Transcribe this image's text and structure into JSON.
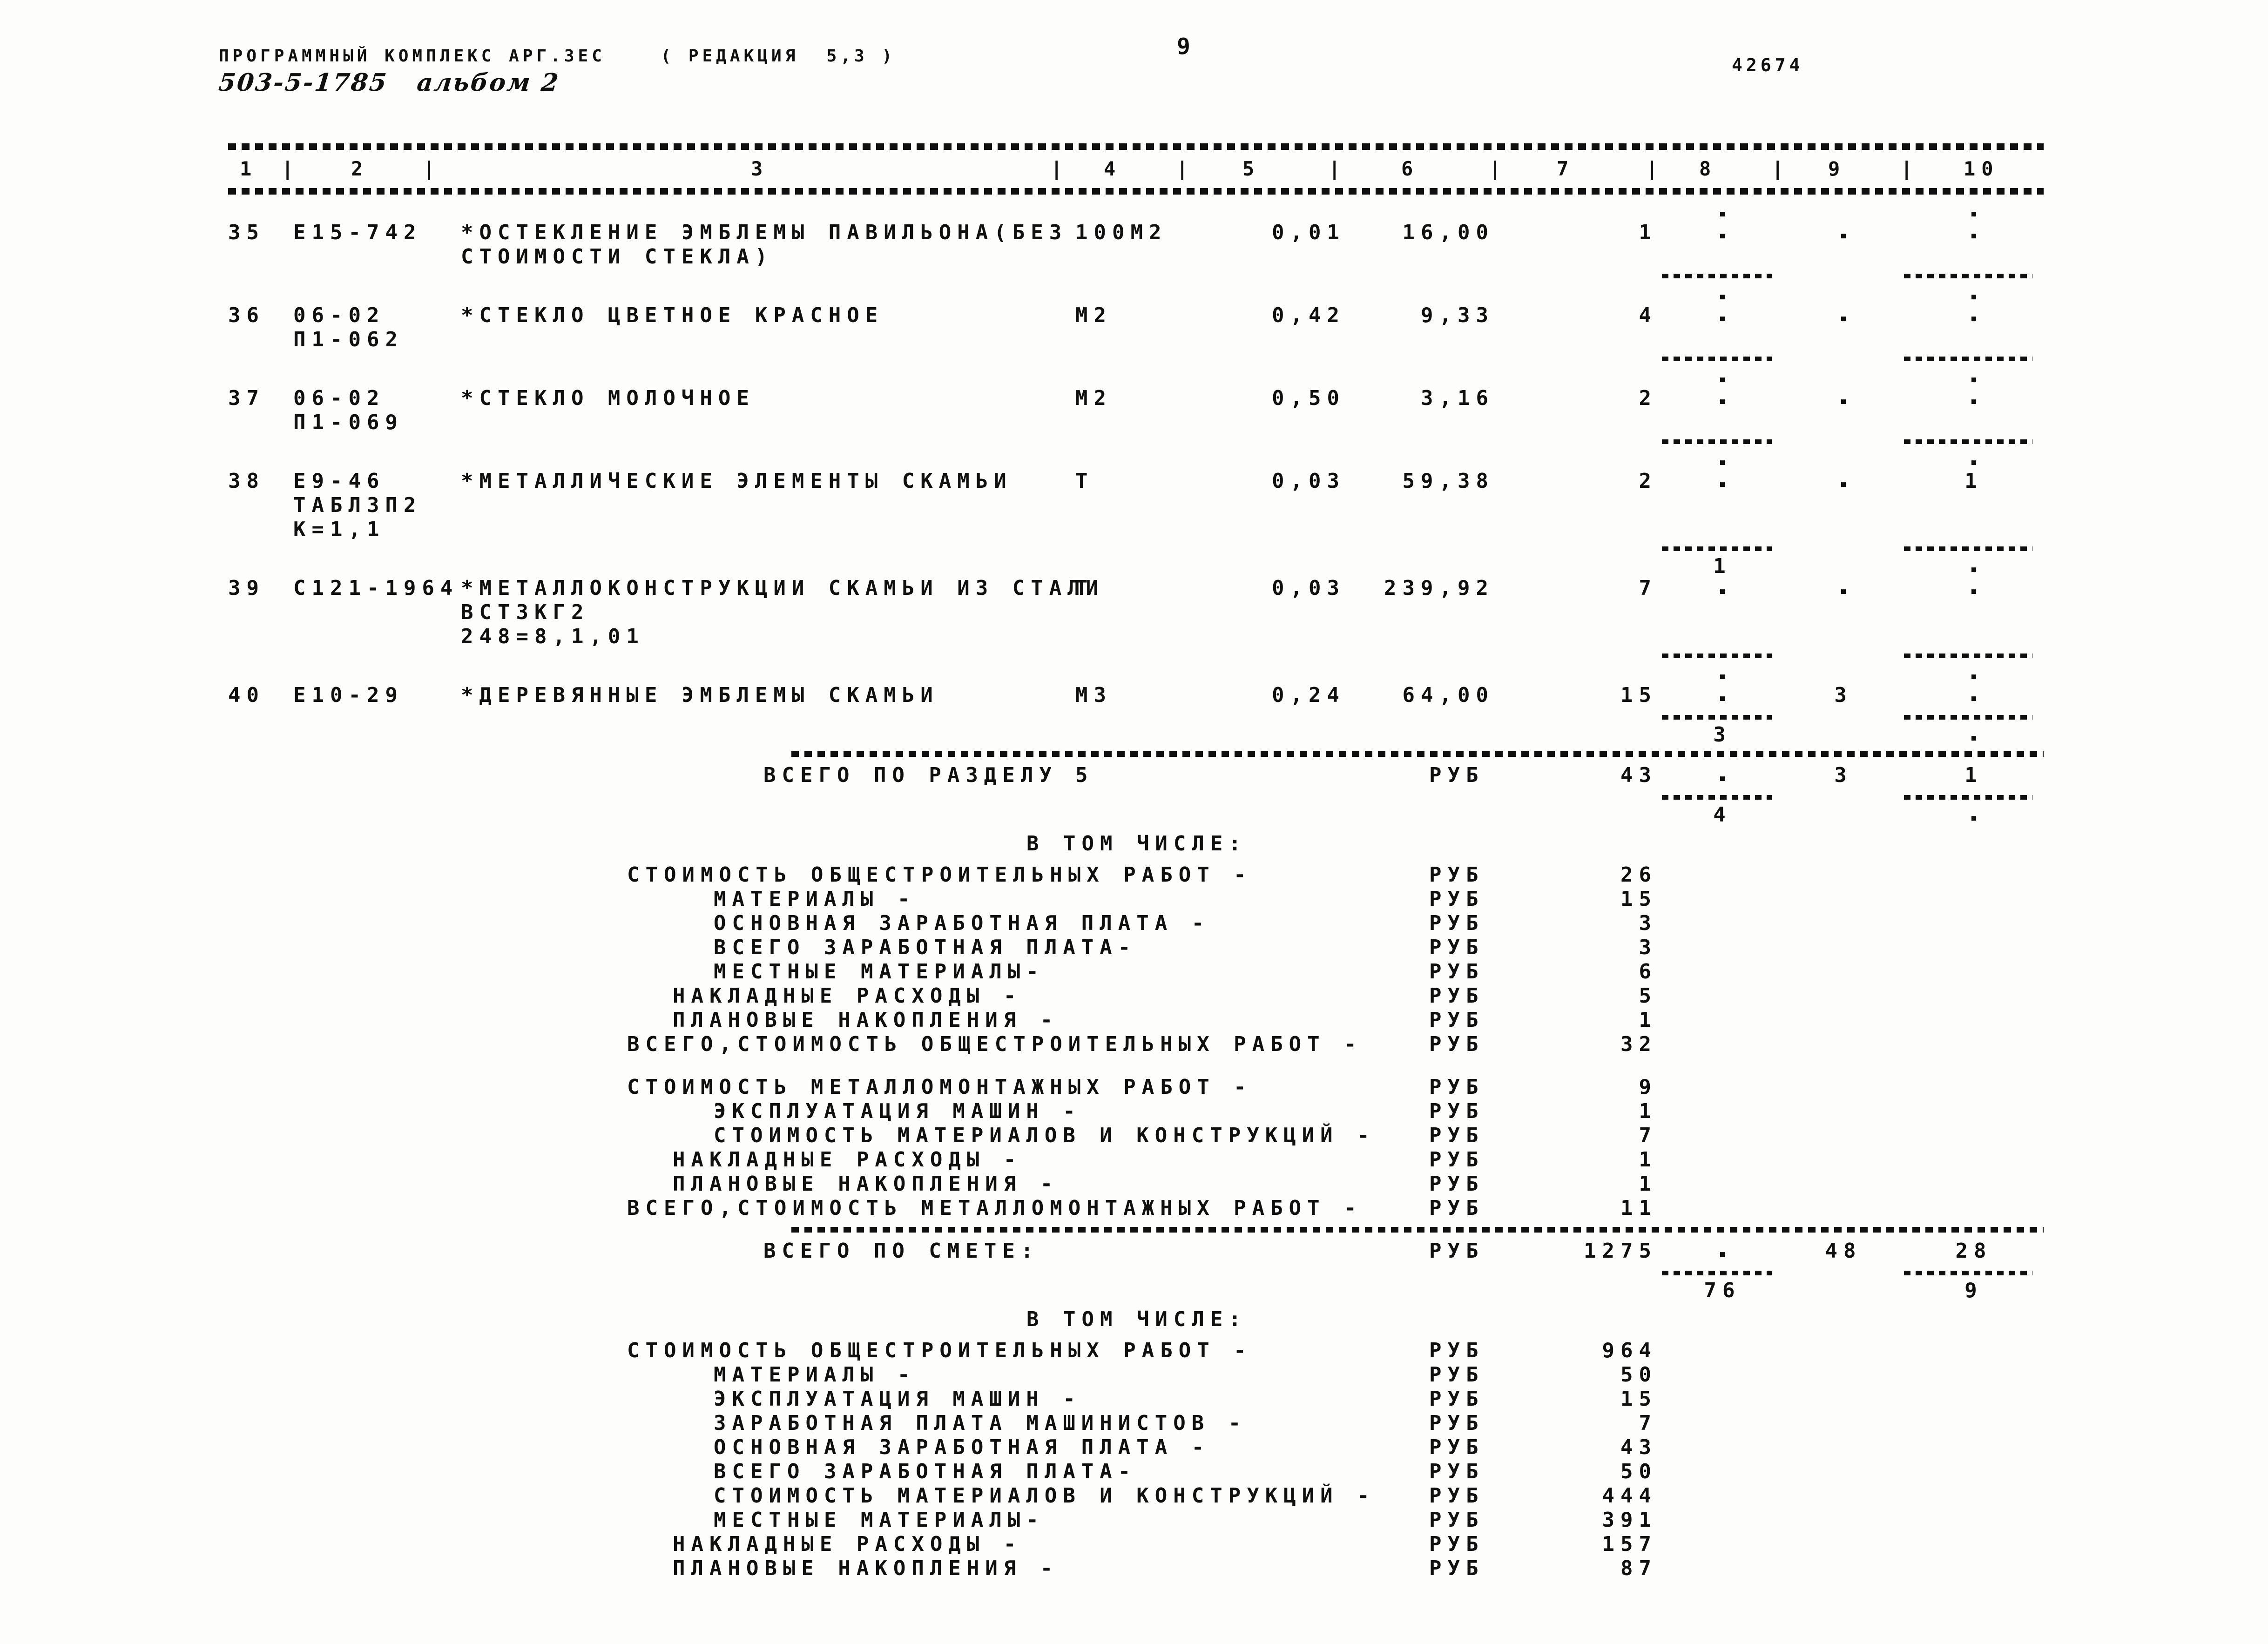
{
  "page": {
    "number": "9",
    "form_number": "42674"
  },
  "header": {
    "program_title": "ПРОГРАММНЫЙ КОМПЛЕКС АРГ.ЗЕС    ( РЕДАКЦИЯ  5,3 )",
    "handwritten_series": "503-5-1785   альбом 2"
  },
  "table": {
    "column_numbers": [
      "1",
      "2",
      "3",
      "4",
      "5",
      "6",
      "7",
      "8",
      "9",
      "10"
    ],
    "mark_glyph": "▪",
    "rows": [
      {
        "num": "35",
        "code": [
          "Е15-742"
        ],
        "desc": [
          "*ОСТЕКЛЕНИЕ ЭМБЛЕМЫ ПАВИЛЬОНА(БЕЗ",
          "СТОИМОСТИ СТЕКЛА)"
        ],
        "unit": "100М2",
        "col5": "0,01",
        "col6": "16,00",
        "col7": "1",
        "c8": "▪",
        "c9": "▪",
        "c10": "▪",
        "above_c8": "▪",
        "above_c10": "▪"
      },
      {
        "num": "36",
        "code": [
          "06-02",
          "П1-062"
        ],
        "desc": [
          "*СТЕКЛО ЦВЕТНОЕ КРАСНОЕ"
        ],
        "unit": "М2",
        "col5": "0,42",
        "col6": "9,33",
        "col7": "4",
        "c8": "▪",
        "c9": "▪",
        "c10": "▪",
        "above_c8": "▪",
        "above_c10": "▪"
      },
      {
        "num": "37",
        "code": [
          "06-02",
          "П1-069"
        ],
        "desc": [
          "*СТЕКЛО МОЛОЧНОЕ"
        ],
        "unit": "М2",
        "col5": "0,50",
        "col6": "3,16",
        "col7": "2",
        "c8": "▪",
        "c9": "▪",
        "c10": "▪",
        "above_c8": "▪",
        "above_c10": "▪"
      },
      {
        "num": "38",
        "code": [
          "Е9-46",
          "ТАБЛ3П2",
          "К=1,1"
        ],
        "desc": [
          "*МЕТАЛЛИЧЕСКИЕ ЭЛЕМЕНТЫ СКАМЬИ"
        ],
        "unit": "Т",
        "col5": "0,03",
        "col6": "59,38",
        "col7": "2",
        "c8": "▪",
        "c9": "▪",
        "c10": "1",
        "above_c8": "▪",
        "above_c10": "▪"
      },
      {
        "num": "39",
        "code": [
          "С121-1964"
        ],
        "desc": [
          "*МЕТАЛЛОКОНСТРУКЦИИ СКАМЬИ ИЗ СТАЛИ",
          "ВСТ3КГ2",
          "248=8,1,01"
        ],
        "unit": "Т",
        "col5": "0,03",
        "col6": "239,92",
        "col7": "7",
        "c8": "▪",
        "c9": "▪",
        "c10": "▪",
        "above_c8": "1",
        "above_c10": "▪"
      },
      {
        "num": "40",
        "code": [
          "Е10-29"
        ],
        "desc": [
          "*ДЕРЕВЯННЫЕ ЭМБЛЕМЫ СКАМЬИ"
        ],
        "unit": "М3",
        "col5": "0,24",
        "col6": "64,00",
        "col7": "15",
        "c8": "▪",
        "c9": "3",
        "c10": "▪",
        "above_c8": "▪",
        "above_c10": "▪",
        "extra_c8": "3",
        "extra_c10": "▪"
      }
    ],
    "total_razdel": {
      "label": "ВСЕГО ПО РАЗДЕЛУ",
      "section_no": "5",
      "currency": "РУБ",
      "col7": "43",
      "c8": "▪",
      "c9": "3",
      "c10": "1",
      "extra_c8": "4",
      "extra_c10": "▪"
    },
    "total_smeta": {
      "label": "ВСЕГО ПО СМЕТЕ:",
      "currency": "РУБ",
      "col7": "1275",
      "c8": "▪",
      "c9": "48",
      "c10": "28",
      "extra_c8": "76",
      "extra_c10": "9"
    }
  },
  "breakdown": {
    "title": "В ТОМ ЧИСЛЕ:",
    "razdel_items": [
      {
        "label": "СТОИМОСТЬ ОБЩЕСТРОИТЕЛЬНЫХ РАБОТ -",
        "indent": 0,
        "currency": "РУБ",
        "value": "26"
      },
      {
        "label": "МАТЕРИАЛЫ -",
        "indent": 2,
        "currency": "РУБ",
        "value": "15"
      },
      {
        "label": "ОСНОВНАЯ ЗАРАБОТНАЯ ПЛАТА -",
        "indent": 2,
        "currency": "РУБ",
        "value": "3"
      },
      {
        "label": "ВСЕГО ЗАРАБОТНАЯ ПЛАТА-",
        "indent": 2,
        "currency": "РУБ",
        "value": "3"
      },
      {
        "label": "МЕСТНЫЕ МАТЕРИАЛЫ-",
        "indent": 2,
        "currency": "РУБ",
        "value": "6"
      },
      {
        "label": "НАКЛАДНЫЕ РАСХОДЫ -",
        "indent": 1,
        "currency": "РУБ",
        "value": "5"
      },
      {
        "label": "ПЛАНОВЫЕ НАКОПЛЕНИЯ -",
        "indent": 1,
        "currency": "РУБ",
        "value": "1"
      },
      {
        "label": "ВСЕГО,СТОИМОСТЬ ОБЩЕСТРОИТЕЛЬНЫХ РАБОТ -",
        "indent": 0,
        "currency": "РУБ",
        "value": "32"
      }
    ],
    "montage_items": [
      {
        "label": "СТОИМОСТЬ МЕТАЛЛОМОНТАЖНЫХ РАБОТ -",
        "indent": 0,
        "currency": "РУБ",
        "value": "9"
      },
      {
        "label": "ЭКСПЛУАТАЦИЯ МАШИН -",
        "indent": 2,
        "currency": "РУБ",
        "value": "1"
      },
      {
        "label": "СТОИМОСТЬ МАТЕРИАЛОВ И КОНСТРУКЦИЙ -",
        "indent": 2,
        "currency": "РУБ",
        "value": "7"
      },
      {
        "label": "НАКЛАДНЫЕ РАСХОДЫ -",
        "indent": 1,
        "currency": "РУБ",
        "value": "1"
      },
      {
        "label": "ПЛАНОВЫЕ НАКОПЛЕНИЯ -",
        "indent": 1,
        "currency": "РУБ",
        "value": "1"
      },
      {
        "label": "ВСЕГО,СТОИМОСТЬ МЕТАЛЛОМОНТАЖНЫХ РАБОТ -",
        "indent": 0,
        "currency": "РУБ",
        "value": "11"
      }
    ],
    "smeta_items": [
      {
        "label": "СТОИМОСТЬ ОБЩЕСТРОИТЕЛЬНЫХ РАБОТ -",
        "indent": 0,
        "currency": "РУБ",
        "value": "964"
      },
      {
        "label": "МАТЕРИАЛЫ -",
        "indent": 2,
        "currency": "РУБ",
        "value": "50"
      },
      {
        "label": "ЭКСПЛУАТАЦИЯ МАШИН -",
        "indent": 2,
        "currency": "РУБ",
        "value": "15"
      },
      {
        "label": "ЗАРАБОТНАЯ ПЛАТА МАШИНИСТОВ -",
        "indent": 2,
        "currency": "РУБ",
        "value": "7"
      },
      {
        "label": "ОСНОВНАЯ ЗАРАБОТНАЯ ПЛАТА -",
        "indent": 2,
        "currency": "РУБ",
        "value": "43"
      },
      {
        "label": "ВСЕГО ЗАРАБОТНАЯ ПЛАТА-",
        "indent": 2,
        "currency": "РУБ",
        "value": "50"
      },
      {
        "label": "СТОИМОСТЬ МАТЕРИАЛОВ И КОНСТРУКЦИЙ -",
        "indent": 2,
        "currency": "РУБ",
        "value": "444"
      },
      {
        "label": "МЕСТНЫЕ МАТЕРИАЛЫ-",
        "indent": 2,
        "currency": "РУБ",
        "value": "391"
      },
      {
        "label": "НАКЛАДНЫЕ РАСХОДЫ -",
        "indent": 1,
        "currency": "РУБ",
        "value": "157"
      },
      {
        "label": "ПЛАНОВЫЕ НАКОПЛЕНИЯ -",
        "indent": 1,
        "currency": "РУБ",
        "value": "87"
      }
    ]
  }
}
